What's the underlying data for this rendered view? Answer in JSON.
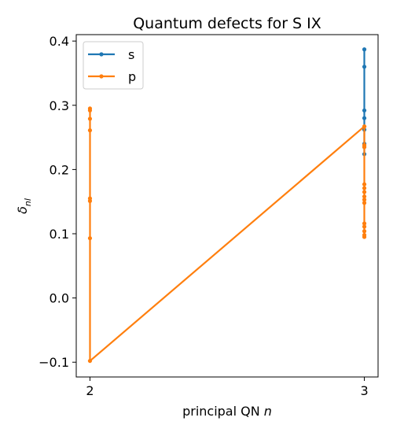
{
  "chart_data": {
    "type": "line",
    "title": "Quantum defects for S IX",
    "xlabel": "principal QN n",
    "ylabel": "δ_nl",
    "xlim": [
      1.95,
      3.05
    ],
    "ylim": [
      -0.123,
      0.41
    ],
    "xticks": [
      {
        "value": 2,
        "label": "2"
      },
      {
        "value": 3,
        "label": "3"
      }
    ],
    "yticks": [
      {
        "value": -0.1,
        "label": "−0.1"
      },
      {
        "value": 0.0,
        "label": "0.0"
      },
      {
        "value": 0.1,
        "label": "0.1"
      },
      {
        "value": 0.2,
        "label": "0.2"
      },
      {
        "value": 0.3,
        "label": "0.3"
      },
      {
        "value": 0.4,
        "label": "0.4"
      }
    ],
    "grid": false,
    "legend_position": "top-left",
    "series": [
      {
        "name": "s",
        "color": "#1f77b4",
        "x": [
          3,
          3,
          3,
          3,
          3,
          3,
          3,
          3
        ],
        "y": [
          0.387,
          0.36,
          0.292,
          0.28,
          0.262,
          0.24,
          0.235,
          0.224
        ]
      },
      {
        "name": "p",
        "color": "#ff7f0e",
        "x": [
          2,
          2,
          2,
          2,
          2,
          2,
          2,
          2,
          3,
          3,
          3,
          3,
          3,
          3,
          3,
          3,
          3,
          3,
          3,
          3,
          3,
          3,
          3
        ],
        "y": [
          0.295,
          0.292,
          0.279,
          0.261,
          0.155,
          0.151,
          0.093,
          -0.098,
          0.267,
          0.238,
          0.235,
          0.177,
          0.171,
          0.165,
          0.158,
          0.153,
          0.148,
          0.116,
          0.111,
          0.104,
          0.098,
          0.095,
          0.267
        ]
      }
    ]
  }
}
